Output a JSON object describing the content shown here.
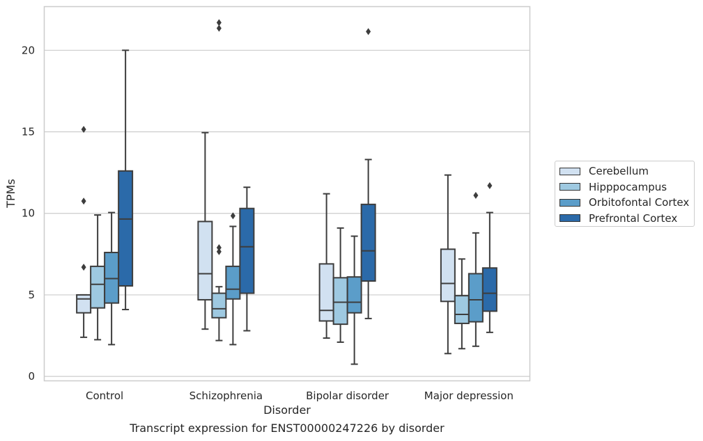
{
  "chart_data": {
    "type": "boxplot",
    "xlabel": "Disorder",
    "ylabel": "TPMs",
    "caption": "Transcript expression for ENST00000247226 by disorder",
    "ylim": [
      -0.25,
      22.7
    ],
    "yticks": [
      0,
      5,
      10,
      15,
      20
    ],
    "grid": "horizontal",
    "legend_position": "right",
    "categories": [
      "Control",
      "Schizophrenia",
      "Bipolar disorder",
      "Major depression"
    ],
    "series": [
      {
        "name": "Cerebellum",
        "color": "#d1e1f1",
        "boxes": [
          {
            "whislo": 2.4,
            "q1": 3.9,
            "med": 4.75,
            "q3": 5.0,
            "whishi": 5.0,
            "fliers": [
              6.7,
              10.75,
              15.15
            ]
          },
          {
            "whislo": 2.9,
            "q1": 4.7,
            "med": 6.3,
            "q3": 9.5,
            "whishi": 14.95,
            "fliers": []
          },
          {
            "whislo": 2.35,
            "q1": 3.4,
            "med": 4.05,
            "q3": 6.9,
            "whishi": 11.2,
            "fliers": []
          },
          {
            "whislo": 1.4,
            "q1": 4.6,
            "med": 5.7,
            "q3": 7.8,
            "whishi": 12.35,
            "fliers": []
          }
        ]
      },
      {
        "name": "Hipppocampus",
        "color": "#9ec9e1",
        "boxes": [
          {
            "whislo": 2.25,
            "q1": 4.2,
            "med": 5.65,
            "q3": 6.75,
            "whishi": 9.9,
            "fliers": []
          },
          {
            "whislo": 2.2,
            "q1": 3.6,
            "med": 4.15,
            "q3": 5.1,
            "whishi": 5.5,
            "fliers": [
              7.65,
              7.9,
              21.35,
              21.7
            ]
          },
          {
            "whislo": 2.1,
            "q1": 3.2,
            "med": 4.55,
            "q3": 6.05,
            "whishi": 9.1,
            "fliers": []
          },
          {
            "whislo": 1.7,
            "q1": 3.25,
            "med": 3.8,
            "q3": 4.95,
            "whishi": 7.2,
            "fliers": []
          }
        ]
      },
      {
        "name": "Orbitofontal Cortex",
        "color": "#5b9dc9",
        "boxes": [
          {
            "whislo": 1.95,
            "q1": 4.5,
            "med": 6.0,
            "q3": 7.6,
            "whishi": 10.05,
            "fliers": []
          },
          {
            "whislo": 1.95,
            "q1": 4.75,
            "med": 5.35,
            "q3": 6.75,
            "whishi": 9.2,
            "fliers": [
              9.85
            ]
          },
          {
            "whislo": 0.75,
            "q1": 3.9,
            "med": 4.55,
            "q3": 6.1,
            "whishi": 8.6,
            "fliers": []
          },
          {
            "whislo": 1.85,
            "q1": 3.35,
            "med": 4.7,
            "q3": 6.3,
            "whishi": 8.8,
            "fliers": [
              11.1
            ]
          }
        ]
      },
      {
        "name": "Prefrontal Cortex",
        "color": "#2b6aa9",
        "boxes": [
          {
            "whislo": 4.1,
            "q1": 5.55,
            "med": 9.65,
            "q3": 12.6,
            "whishi": 20.0,
            "fliers": []
          },
          {
            "whislo": 2.8,
            "q1": 5.1,
            "med": 7.95,
            "q3": 10.3,
            "whishi": 11.6,
            "fliers": []
          },
          {
            "whislo": 3.55,
            "q1": 5.85,
            "med": 7.7,
            "q3": 10.55,
            "whishi": 13.3,
            "fliers": [
              21.15
            ]
          },
          {
            "whislo": 2.7,
            "q1": 4.0,
            "med": 5.1,
            "q3": 6.65,
            "whishi": 10.05,
            "fliers": [
              11.7
            ]
          }
        ]
      }
    ]
  }
}
